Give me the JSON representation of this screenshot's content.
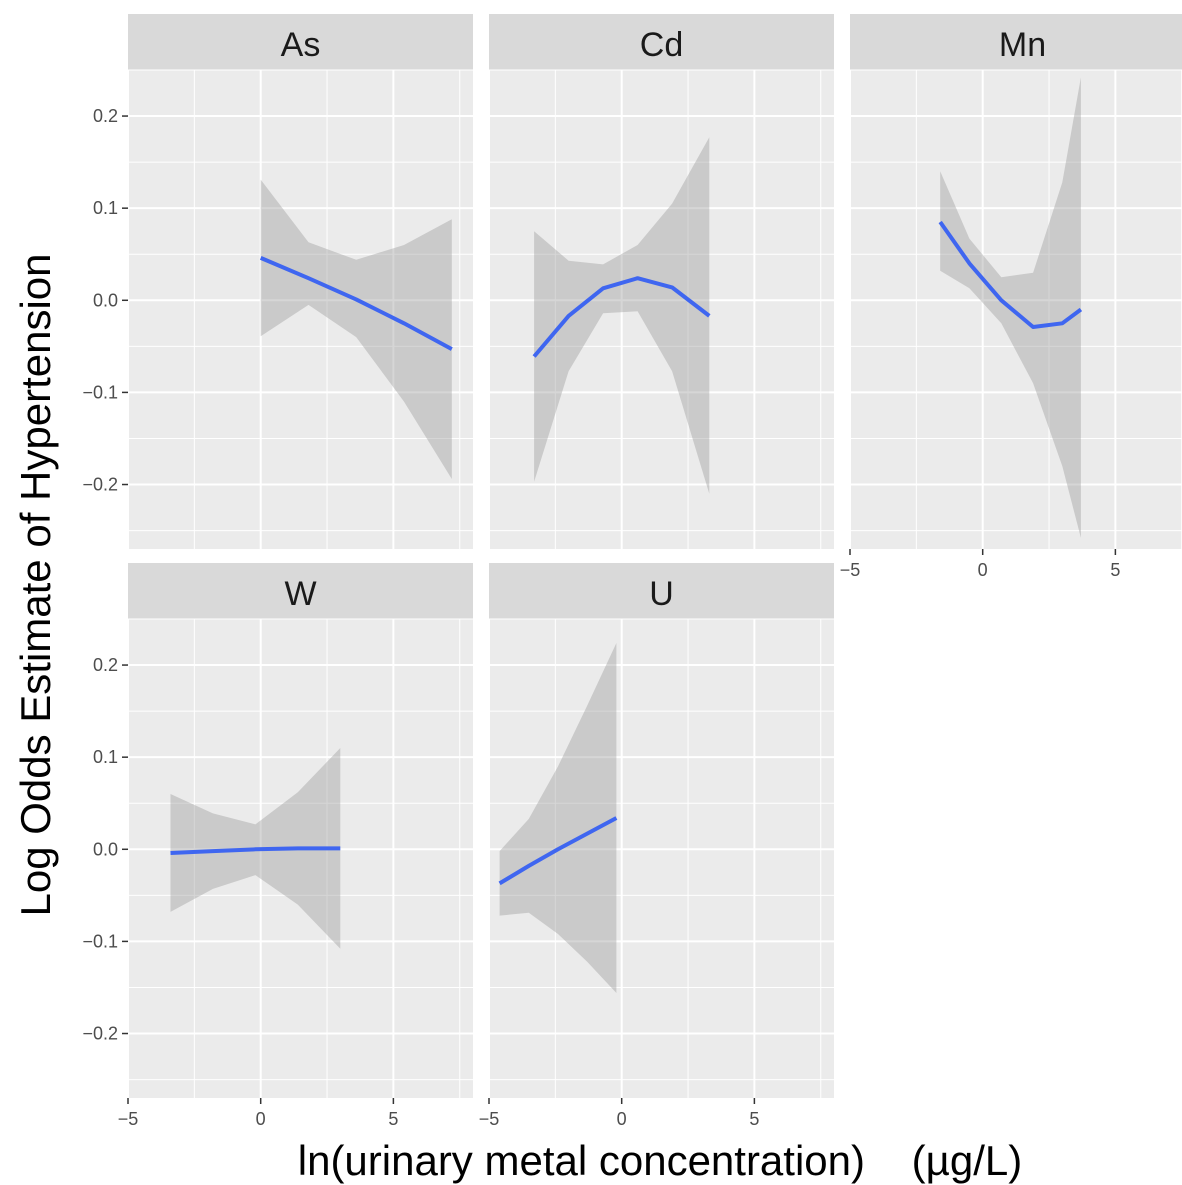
{
  "chart_data": {
    "type": "line",
    "facet_layout": "3 columns, 2 rows",
    "xlabel": "ln(urinary metal concentration)    (µg/L)",
    "ylabel": "Log Odds Estimate of Hypertension",
    "xlim": [
      -5,
      8
    ],
    "ylim": [
      -0.27,
      0.25
    ],
    "x_ticks": [
      -5,
      0,
      5
    ],
    "x_tick_labels": [
      "−5",
      "0",
      "5"
    ],
    "y_ticks": [
      0.2,
      0.1,
      0.0,
      -0.1,
      -0.2
    ],
    "y_tick_labels": [
      "0.2",
      "0.1",
      "0.0",
      "−0.1",
      "−0.2"
    ],
    "grid": true,
    "colors": {
      "line": "#3f66f0",
      "ribbon": "#999999",
      "panel": "#ebebeb",
      "strip": "#d9d9d9",
      "gridline": "#ffffff"
    },
    "panels": [
      {
        "label": "As",
        "x": [
          0,
          1.8,
          3.6,
          5.4,
          7.2
        ],
        "y": [
          0.046,
          0.024,
          0.001,
          -0.025,
          -0.053
        ],
        "upper": [
          0.131,
          0.063,
          0.044,
          0.06,
          0.088
        ],
        "lower": [
          -0.039,
          -0.005,
          -0.04,
          -0.11,
          -0.194
        ]
      },
      {
        "label": "Cd",
        "x": [
          -3.3,
          -2.0,
          -0.7,
          0.6,
          1.9,
          3.3
        ],
        "y": [
          -0.061,
          -0.017,
          0.013,
          0.024,
          0.014,
          -0.017
        ],
        "upper": [
          0.075,
          0.043,
          0.039,
          0.06,
          0.105,
          0.177
        ],
        "lower": [
          -0.197,
          -0.077,
          -0.014,
          -0.012,
          -0.077,
          -0.21
        ]
      },
      {
        "label": "Mn",
        "x": [
          -1.6,
          -0.5,
          0.7,
          1.9,
          3.0,
          3.7
        ],
        "y": [
          0.085,
          0.04,
          0.0,
          -0.029,
          -0.025,
          -0.01
        ],
        "upper": [
          0.14,
          0.067,
          0.025,
          0.03,
          0.128,
          0.242
        ],
        "lower": [
          0.032,
          0.013,
          -0.025,
          -0.09,
          -0.18,
          -0.258
        ]
      },
      {
        "label": "W",
        "x": [
          -3.4,
          -1.8,
          -0.2,
          1.4,
          3.0
        ],
        "y": [
          -0.004,
          -0.002,
          0.0,
          0.001,
          0.001
        ],
        "upper": [
          0.06,
          0.039,
          0.027,
          0.062,
          0.11
        ],
        "lower": [
          -0.068,
          -0.043,
          -0.028,
          -0.06,
          -0.108
        ]
      },
      {
        "label": "U",
        "x": [
          -4.6,
          -3.5,
          -2.4,
          -1.3,
          -0.2
        ],
        "y": [
          -0.037,
          -0.018,
          0.0,
          0.017,
          0.034
        ],
        "upper": [
          -0.002,
          0.033,
          0.09,
          0.156,
          0.224
        ],
        "lower": [
          -0.072,
          -0.069,
          -0.092,
          -0.122,
          -0.156
        ]
      }
    ]
  }
}
